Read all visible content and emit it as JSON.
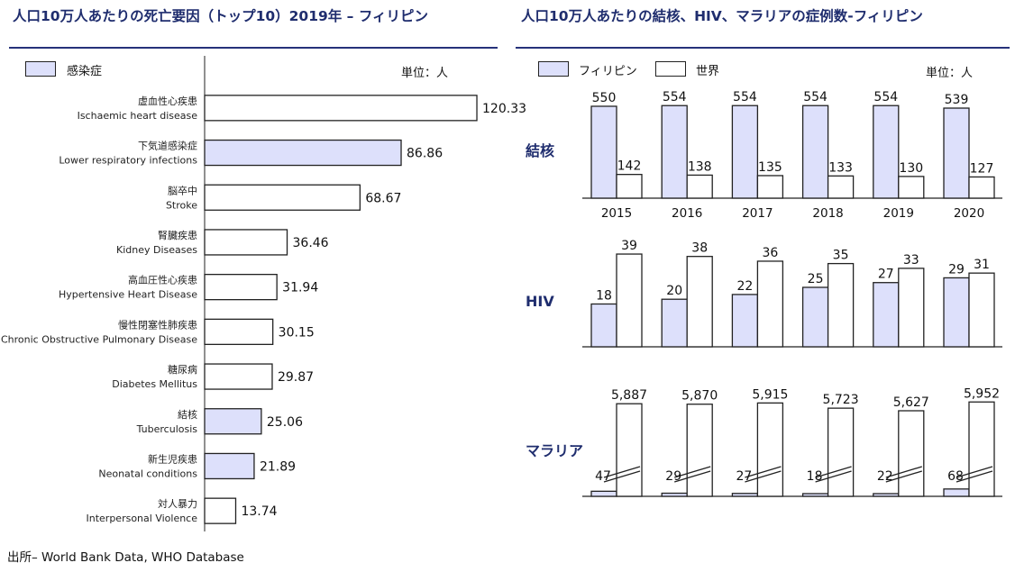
{
  "left": {
    "title": "人口10万人あたりの死亡要因（トップ10）2019年 – フィリピン",
    "unit_label": "単位：人",
    "legend_label": "感染症"
  },
  "right": {
    "title": "人口10万人あたりの結核、HIV、マラリアの症例数-フィリピン",
    "unit_label": "単位：人",
    "legend": [
      "フィリピン",
      "世界"
    ]
  },
  "source": "出所– World Bank Data, WHO Database",
  "colors": {
    "infectious": "#dde0fb",
    "philippines": "#dde0fb",
    "world": "#ffffff",
    "accent": "#1f2d6e",
    "outline": "#222222"
  },
  "chart_data": [
    {
      "type": "bar",
      "orientation": "horizontal",
      "title": "人口10万人あたりの死亡要因（トップ10）2019年 – フィリピン",
      "unit": "単位：人",
      "categories": [
        {
          "ja": "虚血性心疾患",
          "en": "Ischaemic heart disease",
          "value": 120.33,
          "value_label": "120.33",
          "infectious": false
        },
        {
          "ja": "下気道感染症",
          "en": "Lower respiratory infections",
          "value": 86.86,
          "value_label": "86.86",
          "infectious": true
        },
        {
          "ja": "脳卒中",
          "en": "Stroke",
          "value": 68.67,
          "value_label": "68.67",
          "infectious": false
        },
        {
          "ja": "腎臓疾患",
          "en": "Kidney Diseases",
          "value": 36.46,
          "value_label": "36.46",
          "infectious": false
        },
        {
          "ja": "高血圧性心疾患",
          "en": "Hypertensive Heart Disease",
          "value": 31.94,
          "value_label": "31.94",
          "infectious": false
        },
        {
          "ja": "慢性閉塞性肺疾患",
          "en": "Chronic Obstructive Pulmonary Disease",
          "value": 30.15,
          "value_label": "30.15",
          "infectious": false
        },
        {
          "ja": "糖尿病",
          "en": "Diabetes Mellitus",
          "value": 29.87,
          "value_label": "29.87",
          "infectious": false
        },
        {
          "ja": "結核",
          "en": "Tuberculosis",
          "value": 25.06,
          "value_label": "25.06",
          "infectious": true
        },
        {
          "ja": "新生児疾患",
          "en": "Neonatal conditions",
          "value": 21.89,
          "value_label": "21.89",
          "infectious": true
        },
        {
          "ja": "対人暴力",
          "en": "Interpersonal Violence",
          "value": 13.74,
          "value_label": "13.74",
          "infectious": false
        }
      ],
      "legend": [
        "感染症"
      ]
    },
    {
      "type": "bar",
      "title": "人口10万人あたりの結核、HIV、マラリアの症例数-フィリピン",
      "unit": "単位：人",
      "categories": [
        "2015",
        "2016",
        "2017",
        "2018",
        "2019",
        "2020"
      ],
      "legend": [
        "フィリピン",
        "世界"
      ],
      "panels": [
        {
          "label": "結核",
          "broken_axis": false,
          "series": [
            {
              "name": "フィリピン",
              "values": [
                550,
                554,
                554,
                554,
                554,
                539
              ],
              "labels": [
                "550",
                "554",
                "554",
                "554",
                "554",
                "539"
              ]
            },
            {
              "name": "世界",
              "values": [
                142,
                138,
                135,
                133,
                130,
                127
              ],
              "labels": [
                "142",
                "138",
                "135",
                "133",
                "130",
                "127"
              ]
            }
          ]
        },
        {
          "label": "HIV",
          "broken_axis": false,
          "series": [
            {
              "name": "フィリピン",
              "values": [
                18,
                20,
                22,
                25,
                27,
                29
              ],
              "labels": [
                "18",
                "20",
                "22",
                "25",
                "27",
                "29"
              ]
            },
            {
              "name": "世界",
              "values": [
                39,
                38,
                36,
                35,
                33,
                31
              ],
              "labels": [
                "39",
                "38",
                "36",
                "35",
                "33",
                "31"
              ]
            }
          ]
        },
        {
          "label": "マラリア",
          "broken_axis": true,
          "series": [
            {
              "name": "フィリピン",
              "values": [
                47,
                29,
                27,
                18,
                22,
                68
              ],
              "labels": [
                "47",
                "29",
                "27",
                "18",
                "22",
                "68"
              ]
            },
            {
              "name": "世界",
              "values": [
                5887,
                5870,
                5915,
                5723,
                5627,
                5952
              ],
              "labels": [
                "5,887",
                "5,870",
                "5,915",
                "5,723",
                "5,627",
                "5,952"
              ]
            }
          ]
        }
      ]
    }
  ]
}
